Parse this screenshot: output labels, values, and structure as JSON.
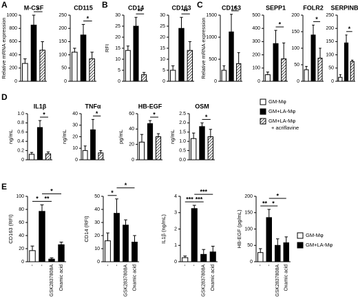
{
  "panel_labels": [
    "A",
    "B",
    "C",
    "D",
    "E"
  ],
  "legends": [
    {
      "entries": [
        {
          "lines": [
            "GM-Mφ"
          ],
          "color": "#ffffff"
        },
        {
          "lines": [
            "GM+LA-Mφ"
          ],
          "color": "#000000"
        },
        {
          "lines": [
            "GM+LA-Mφ",
            "+ acriflavine"
          ],
          "color": "hatched"
        }
      ]
    },
    {
      "entries": [
        {
          "lines": [
            "GM-Mφ"
          ],
          "color": "#ffffff"
        },
        {
          "lines": [
            "GM+LA-Mφ"
          ],
          "color": "#000000"
        }
      ]
    }
  ],
  "chart_data": [
    {
      "type": "bar",
      "title": "M-CSF",
      "ylabel": "Relative mRNA expression",
      "categories": [
        null,
        null,
        null
      ],
      "values": [
        270,
        850,
        470
      ],
      "errors": [
        70,
        150,
        130
      ],
      "colors": [
        "#ffffff",
        "#000000",
        "hatched"
      ],
      "ylim": [
        0,
        1000
      ],
      "yticks": [
        0,
        200,
        400,
        600,
        800,
        1000
      ],
      "annotations": [
        {
          "text": "*",
          "bars": [
            1,
            2
          ]
        }
      ]
    },
    {
      "type": "bar",
      "title": "CD115",
      "categories": [
        null,
        null,
        null
      ],
      "values": [
        110,
        175,
        85
      ],
      "errors": [
        15,
        40,
        25
      ],
      "colors": [
        "#ffffff",
        "#000000",
        "hatched"
      ],
      "ylim": [
        0,
        250
      ],
      "yticks": [
        0,
        50,
        100,
        150,
        200,
        250
      ],
      "annotations": [
        {
          "text": "*",
          "bars": [
            1,
            2
          ]
        }
      ]
    },
    {
      "type": "bar",
      "title": "CD14",
      "ylabel": "RFI",
      "categories": [
        null,
        null,
        null
      ],
      "values": [
        14,
        25,
        3
      ],
      "errors": [
        2,
        4,
        1
      ],
      "colors": [
        "#ffffff",
        "#000000",
        "hatched"
      ],
      "ylim": [
        0,
        30
      ],
      "yticks": [
        0,
        5,
        10,
        15,
        20,
        25,
        30
      ],
      "annotations": [
        {
          "text": "**",
          "bars": [
            1,
            2
          ]
        }
      ]
    },
    {
      "type": "bar",
      "title": "CD163",
      "categories": [
        null,
        null,
        null
      ],
      "values": [
        5,
        24,
        14
      ],
      "errors": [
        2,
        5,
        4
      ],
      "colors": [
        "#ffffff",
        "#000000",
        "hatched"
      ],
      "ylim": [
        0,
        30
      ],
      "yticks": [
        0,
        5,
        10,
        15,
        20,
        25,
        30
      ],
      "annotations": [
        {
          "text": "**",
          "bars": [
            1,
            2
          ]
        }
      ]
    },
    {
      "type": "bar",
      "title": "CD163",
      "ylabel": "Relative mRNA expression",
      "categories": [
        null,
        null,
        null
      ],
      "values": [
        250,
        1120,
        400
      ],
      "errors": [
        100,
        400,
        250
      ],
      "colors": [
        "#ffffff",
        "#000000",
        "hatched"
      ],
      "ylim": [
        0,
        1500
      ],
      "yticks": [
        0,
        500,
        1000,
        1500
      ],
      "annotations": [
        {
          "text": "*",
          "bars": [
            1,
            2
          ]
        }
      ]
    },
    {
      "type": "bar",
      "title": "SEPP1",
      "categories": [
        null,
        null,
        null
      ],
      "values": [
        50,
        285,
        170
      ],
      "errors": [
        20,
        100,
        120
      ],
      "colors": [
        "#ffffff",
        "#000000",
        "hatched"
      ],
      "ylim": [
        0,
        500
      ],
      "yticks": [
        0,
        100,
        200,
        300,
        400,
        500
      ],
      "annotations": [
        {
          "text": "*",
          "bars": [
            1,
            2
          ]
        }
      ]
    },
    {
      "type": "bar",
      "title": "FOLR2",
      "categories": [
        null,
        null,
        null
      ],
      "values": [
        35,
        140,
        70
      ],
      "errors": [
        10,
        30,
        30
      ],
      "colors": [
        "#ffffff",
        "#000000",
        "hatched"
      ],
      "ylim": [
        0,
        200
      ],
      "yticks": [
        0,
        50,
        100,
        150,
        200
      ],
      "annotations": [
        {
          "text": "*",
          "bars": [
            1,
            2
          ]
        }
      ]
    },
    {
      "type": "bar",
      "title": "SERPINB2",
      "categories": [
        null,
        null,
        null
      ],
      "values": [
        15,
        145,
        75
      ],
      "errors": [
        10,
        30,
        5
      ],
      "colors": [
        "#ffffff",
        "#000000",
        "hatched"
      ],
      "ylim": [
        0,
        250
      ],
      "yticks": [
        0,
        50,
        100,
        150,
        200,
        250
      ],
      "annotations": [
        {
          "text": "*",
          "bars": [
            1,
            2
          ]
        }
      ]
    },
    {
      "type": "bar",
      "title": "IL1β",
      "ylabel": "ng/mL",
      "categories": [
        null,
        null,
        null
      ],
      "values": [
        0.12,
        0.7,
        0.13
      ],
      "errors": [
        0.04,
        0.15,
        0.04
      ],
      "colors": [
        "#ffffff",
        "#000000",
        "hatched"
      ],
      "ylim": [
        0,
        1
      ],
      "yticks": [
        0,
        0.2,
        0.4,
        0.6,
        0.8,
        {
          "value": 1,
          "label": "1.0"
        }
      ],
      "annotations": [
        {
          "text": "*",
          "bars": [
            1,
            2
          ]
        }
      ]
    },
    {
      "type": "bar",
      "title": "TNFα",
      "ylabel": "ng/mL",
      "categories": [
        null,
        null,
        null
      ],
      "values": [
        8,
        26,
        6
      ],
      "errors": [
        4,
        9,
        2
      ],
      "colors": [
        "#ffffff",
        "#000000",
        "hatched"
      ],
      "ylim": [
        0,
        40
      ],
      "yticks": [
        0,
        10,
        20,
        30,
        40
      ],
      "annotations": [
        {
          "text": "*",
          "bars": [
            1,
            2
          ]
        }
      ]
    },
    {
      "type": "bar",
      "title": "HB-EGF",
      "ylabel": "pg/mL",
      "categories": [
        null,
        null,
        null
      ],
      "values": [
        23,
        47,
        30
      ],
      "errors": [
        10,
        4,
        4
      ],
      "colors": [
        "#ffffff",
        "#000000",
        "hatched"
      ],
      "ylim": [
        0,
        60
      ],
      "yticks": [
        0,
        20,
        40,
        60
      ],
      "annotations": [
        {
          "text": "*",
          "bars": [
            1,
            2
          ]
        }
      ]
    },
    {
      "type": "bar",
      "title": "OSM",
      "ylabel": "ng/mL",
      "categories": [
        null,
        null,
        null
      ],
      "values": [
        1.15,
        1.8,
        1.25
      ],
      "errors": [
        0.3,
        0.2,
        0.4
      ],
      "colors": [
        "#ffffff",
        "#000000",
        "hatched"
      ],
      "ylim": [
        0,
        2.5
      ],
      "yticks": [
        {
          "value": 0,
          "label": "0.0"
        },
        0.5,
        {
          "value": 1,
          "label": "1.0"
        },
        1.5,
        {
          "value": 2,
          "label": "2.0"
        },
        2.5
      ],
      "annotations": [
        {
          "text": "*",
          "bars": [
            1,
            2
          ]
        }
      ]
    },
    {
      "type": "bar",
      "ylabel": "CD163 (RFI)",
      "categories": [
        "-",
        "-",
        "GSK2837808A",
        "Oxamic acid"
      ],
      "values": [
        17,
        77,
        4,
        26
      ],
      "errors": [
        7,
        10,
        2,
        4
      ],
      "colors": [
        "#ffffff",
        "#000000",
        "#000000",
        "#000000"
      ],
      "ylim": [
        0,
        100
      ],
      "yticks": [
        0,
        20,
        40,
        60,
        80,
        100
      ],
      "annotations": [
        {
          "text": "*",
          "bars": [
            0,
            1
          ]
        },
        {
          "text": "**",
          "bars": [
            1,
            2
          ]
        },
        {
          "text": "*",
          "bars": [
            1,
            3
          ]
        }
      ]
    },
    {
      "type": "bar",
      "ylabel": "CD14 (RFI)",
      "categories": [
        "-",
        "-",
        "GSK2837808A",
        "Oxamic acid"
      ],
      "values": [
        16,
        37,
        28,
        15
      ],
      "errors": [
        6,
        11,
        4,
        5
      ],
      "colors": [
        "#ffffff",
        "#000000",
        "#000000",
        "#000000"
      ],
      "ylim": [
        0,
        50
      ],
      "yticks": [
        0,
        10,
        20,
        30,
        40,
        50
      ],
      "annotations": [
        {
          "text": "*",
          "bars": [
            0,
            1
          ]
        },
        {
          "text": "*",
          "bars": [
            1,
            3
          ]
        }
      ]
    },
    {
      "type": "bar",
      "ylabel": "IL1β (ng/mL)",
      "categories": [
        "-",
        "-",
        "GSK2837808A",
        "Oxamic acid"
      ],
      "values": [
        0.25,
        3.25,
        0.45,
        0.6
      ],
      "errors": [
        0.1,
        0.2,
        0.3,
        0.35
      ],
      "colors": [
        "#ffffff",
        "#000000",
        "#000000",
        "#000000"
      ],
      "ylim": [
        0,
        4
      ],
      "yticks": [
        0,
        1,
        2,
        3,
        4
      ],
      "annotations": [
        {
          "text": "***",
          "bars": [
            0,
            1
          ]
        },
        {
          "text": "***",
          "bars": [
            1,
            2
          ]
        },
        {
          "text": "***",
          "bars": [
            1,
            3
          ]
        }
      ]
    },
    {
      "type": "bar",
      "ylabel": "HB-EGF (pg/mL)",
      "categories": [
        "-",
        "-",
        "GSK2837808A",
        "Oxamic acid"
      ],
      "values": [
        28,
        135,
        50,
        58
      ],
      "errors": [
        12,
        25,
        20,
        18
      ],
      "colors": [
        "#ffffff",
        "#000000",
        "#000000",
        "#000000"
      ],
      "ylim": [
        0,
        200
      ],
      "yticks": [
        0,
        50,
        100,
        150,
        200
      ],
      "annotations": [
        {
          "text": "**",
          "bars": [
            0,
            1
          ]
        },
        {
          "text": "*",
          "bars": [
            1,
            2
          ]
        },
        {
          "text": "*",
          "bars": [
            1,
            3
          ]
        }
      ]
    }
  ]
}
